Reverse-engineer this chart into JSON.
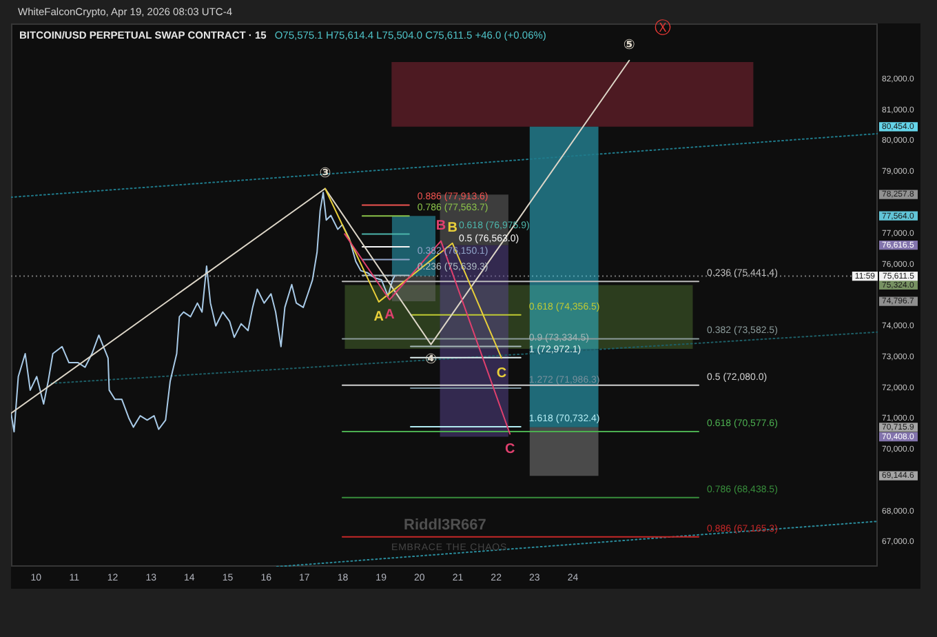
{
  "chart_data": {
    "type": "line",
    "title": "BITCOIN/USD PERPETUAL SWAP CONTRACT · 15",
    "subtitle": "O75,575.1 H75,614.4 L75,504.0 C75,611.5 +46.0 (+0.06%)",
    "xlim": [
      9.35,
      31.95
    ],
    "xticks": [
      10,
      11,
      12,
      13,
      14,
      15,
      16,
      17,
      18,
      19,
      20,
      21,
      22,
      23,
      24
    ],
    "ylim": [
      66200,
      83800
    ],
    "yticks": [
      {
        "value": 67000,
        "label": "67,000.0"
      },
      {
        "value": 68000,
        "label": "68,000.0"
      },
      {
        "value": 69144.6,
        "label": "69,144.6"
      },
      {
        "value": 70000,
        "label": "70,000.0"
      },
      {
        "value": 70408,
        "label": "70,408.0"
      },
      {
        "value": 70715.9,
        "label": "70,715.9"
      },
      {
        "value": 71000,
        "label": "71,000.0"
      },
      {
        "value": 72000,
        "label": "72,000.0"
      },
      {
        "value": 73000,
        "label": "73,000.0"
      },
      {
        "value": 74000,
        "label": "74,000.0"
      },
      {
        "value": 74796.7,
        "label": "74,796.7"
      },
      {
        "value": 75324,
        "label": "75,324.0"
      },
      {
        "value": 76000,
        "label": "76,000.0"
      },
      {
        "value": 76616.5,
        "label": "76,616.5"
      },
      {
        "value": 77000,
        "label": "77,000.0"
      },
      {
        "value": 77564,
        "label": "77,564.0"
      },
      {
        "value": 78257.8,
        "label": "78,257.8"
      },
      {
        "value": 79000,
        "label": "79,000.0"
      },
      {
        "value": 80000,
        "label": "80,000.0"
      },
      {
        "value": 80454,
        "label": "80,454.0"
      },
      {
        "value": 81000,
        "label": "81,000.0"
      },
      {
        "value": 82000,
        "label": "82,000.0"
      }
    ],
    "series": [
      {
        "color": "#4a6c2e",
        "x": [
          18.05,
          27.13
        ],
        "values": [
          null,
          null
        ],
        "lower": [
          73260,
          73260
        ],
        "upper": [
          75324,
          75324
        ]
      },
      {
        "color": "#8c2636",
        "x": [
          19.27,
          28.71
        ],
        "values": [
          null,
          null
        ],
        "lower": [
          80454,
          80454
        ],
        "upper": [
          82550,
          82550
        ]
      },
      {
        "color": "#30c6e2",
        "x": [
          22.87,
          24.67
        ],
        "values": [
          null,
          null
        ],
        "lower": [
          70715.9,
          70715.9
        ],
        "upper": [
          80454,
          80454
        ]
      },
      {
        "color": "#868686",
        "x": [
          22.87,
          24.67
        ],
        "values": [
          null,
          null
        ],
        "lower": [
          69144.6,
          69144.6
        ],
        "upper": [
          70715.9,
          70715.9
        ]
      },
      {
        "color": "#2cb0ca",
        "x": [
          19.28,
          20.42
        ],
        "values": [
          null,
          null
        ],
        "lower": [
          75611.5,
          75611.5
        ],
        "upper": [
          77564,
          77564
        ]
      },
      {
        "color": "#6a6a6a",
        "x": [
          19.28,
          20.42
        ],
        "values": [
          null,
          null
        ],
        "lower": [
          74796.7,
          74796.7
        ],
        "upper": [
          75611.5,
          75611.5
        ]
      },
      {
        "color": "#6c6c6c",
        "x": [
          20.53,
          22.32
        ],
        "values": [
          null,
          null
        ],
        "lower": [
          76616.5,
          76616.5
        ],
        "upper": [
          78257.8,
          78257.8
        ]
      },
      {
        "color": "#584490",
        "x": [
          20.53,
          22.32
        ],
        "values": [
          null,
          null
        ],
        "lower": [
          70408,
          70408
        ],
        "upper": [
          76616.5,
          76616.5
        ]
      },
      {
        "color": "#1f7a8a",
        "line_style": "dotted",
        "x": [
          9.35,
          31.95
        ],
        "values": [
          78170,
          80230
        ]
      },
      {
        "color": "#1d5e66",
        "line_style": "dotted",
        "x": [
          10.4,
          31.95
        ],
        "values": [
          72140,
          73800
        ]
      },
      {
        "color": "#2a8c9c",
        "line_style": "dotted",
        "x": [
          16.28,
          31.95
        ],
        "values": [
          66200,
          67670
        ]
      },
      {
        "name": "0.236 (75,441.4)",
        "color": "#bdbdbd",
        "x": [
          17.99,
          27.28
        ],
        "values": [
          75441.4,
          75441.4
        ]
      },
      {
        "name": "0.382 (73,582.5)",
        "color": "#8a9a9a",
        "x": [
          17.99,
          27.28
        ],
        "values": [
          73582.5,
          73582.5
        ]
      },
      {
        "name": "0.5 (72,080.0)",
        "color": "#d0d0d0",
        "x": [
          17.99,
          27.28
        ],
        "values": [
          72080.0,
          72080.0
        ]
      },
      {
        "name": "0.618 (70,577.6)",
        "color": "#4caf50",
        "x": [
          17.99,
          27.28
        ],
        "values": [
          70577.6,
          70577.6
        ]
      },
      {
        "name": "0.786 (68,438.5)",
        "color": "#388e3c",
        "x": [
          17.99,
          27.28
        ],
        "values": [
          68438.5,
          68438.5
        ]
      },
      {
        "name": "0.886 (67,165.3)",
        "color": "#c62828",
        "x": [
          17.99,
          27.28
        ],
        "values": [
          67165.3,
          67165.3
        ]
      },
      {
        "name": "0.886 (77,913.6)",
        "color": "#ef5350",
        "x": [
          18.51,
          19.73
        ],
        "values": [
          77913.6,
          77913.6
        ]
      },
      {
        "name": "0.786 (77,563.7)",
        "color": "#8bc34a",
        "x": [
          18.51,
          19.73
        ],
        "values": [
          77563.7,
          77563.7
        ]
      },
      {
        "name": "0.618 (76,975.9)",
        "color": "#4db6ac",
        "x": [
          18.51,
          19.73
        ],
        "values": [
          76975.9,
          76975.9
        ]
      },
      {
        "name": "0.5 (76,563.0)",
        "color": "#f5f5f5",
        "x": [
          18.51,
          19.73
        ],
        "values": [
          76563.0,
          76563.0
        ]
      },
      {
        "name": "0.382 (76,150.1)",
        "color": "#90a4c8",
        "x": [
          18.51,
          19.73
        ],
        "values": [
          76150.1,
          76150.1
        ]
      },
      {
        "name": "0.236 (75,639.3)",
        "color": "#b0bec5",
        "x": [
          18.51,
          19.73
        ],
        "values": [
          75639.3,
          75639.3
        ]
      },
      {
        "name": "0.618 (74,356.5)",
        "color": "#c0ca33",
        "x": [
          19.77,
          22.64
        ],
        "values": [
          74356.5,
          74356.5
        ]
      },
      {
        "name": "0.9 (73,334.5)",
        "color": "#a5b8b8",
        "x": [
          19.77,
          22.64
        ],
        "values": [
          73334.5,
          73334.5
        ]
      },
      {
        "name": "1 (72,972.1)",
        "color": "#e0f0f0",
        "x": [
          19.77,
          22.64
        ],
        "values": [
          72972.1,
          72972.1
        ]
      },
      {
        "name": "1.272 (71,986.3)",
        "color": "#78909c",
        "x": [
          19.77,
          22.64
        ],
        "values": [
          71986.3,
          71986.3
        ]
      },
      {
        "name": "1.618 (70,732.4)",
        "color": "#b2ebf2",
        "x": [
          19.77,
          22.64
        ],
        "values": [
          70732.4,
          70732.4
        ]
      },
      {
        "color": "#a9cbe8",
        "x": [
          9.35,
          9.43,
          9.54,
          9.72,
          9.85,
          10.02,
          10.2,
          10.32,
          10.44,
          10.68,
          10.86,
          11.1,
          11.28,
          11.46,
          11.64,
          11.76,
          11.88,
          11.91,
          12.06,
          12.24,
          12.42,
          12.54,
          12.72,
          12.9,
          13.08,
          13.2,
          13.38,
          13.5,
          13.67,
          13.74,
          13.85,
          14.03,
          14.21,
          14.33,
          14.45,
          14.55,
          14.69,
          14.87,
          15.05,
          15.17,
          15.35,
          15.53,
          15.65,
          15.77,
          15.95,
          16.13,
          16.25,
          16.39,
          16.49,
          16.67,
          16.79,
          16.97,
          17.09,
          17.21,
          17.33,
          17.41,
          17.49,
          17.57,
          17.69,
          17.87,
          17.99,
          18.17,
          18.34,
          18.47,
          18.65,
          18.83,
          19.01,
          19.18,
          19.3,
          19.35
        ],
        "values": [
          71170,
          70570,
          72360,
          73100,
          71920,
          72360,
          71470,
          72210,
          73100,
          73330,
          72810,
          72810,
          72660,
          73100,
          73700,
          73330,
          72960,
          71920,
          71620,
          71620,
          71020,
          70720,
          71090,
          70950,
          71090,
          70650,
          70950,
          72210,
          73100,
          74300,
          74450,
          74300,
          74740,
          74450,
          75940,
          74740,
          74000,
          74450,
          74150,
          73630,
          74070,
          73850,
          74600,
          75190,
          74740,
          75040,
          74450,
          73330,
          74600,
          75340,
          74740,
          74600,
          75040,
          75490,
          76390,
          77730,
          78320,
          77430,
          77580,
          77130,
          77280,
          76830,
          76090,
          75790,
          75720,
          75560,
          75490,
          74970,
          75490,
          75611.5
        ]
      },
      {
        "color": "#ddd6c8",
        "x": [
          9.35,
          17.54,
          20.3,
          25.47
        ],
        "values": [
          71170,
          78450,
          73400,
          82600
        ],
        "value_labels": [
          null,
          "③",
          "④",
          "⑤"
        ]
      },
      {
        "color": "#e8cf3a",
        "x": [
          17.54,
          18.94,
          20.86,
          22.14
        ],
        "values": [
          78450,
          74780,
          76680,
          72960
        ],
        "value_labels": [
          null,
          "A",
          "B",
          "C"
        ]
      },
      {
        "color": "#e0406e",
        "x": [
          18.05,
          19.22,
          20.56,
          22.36
        ],
        "values": [
          76980,
          74850,
          76750,
          70500
        ],
        "value_labels": [
          null,
          "A",
          "B",
          "C"
        ]
      }
    ],
    "ref_lines": [
      {
        "axis": "y",
        "value": 75611.5,
        "label": "75,611.5\n11:59",
        "color": "#787878",
        "line_style": "dotted"
      }
    ],
    "annotations": [
      "WhiteFalconCrypto, Apr 19, 2026 08:03 UTC-4",
      "Riddl3R667",
      "EMBRACE THE CHAOS",
      "Ⓧ"
    ]
  }
}
